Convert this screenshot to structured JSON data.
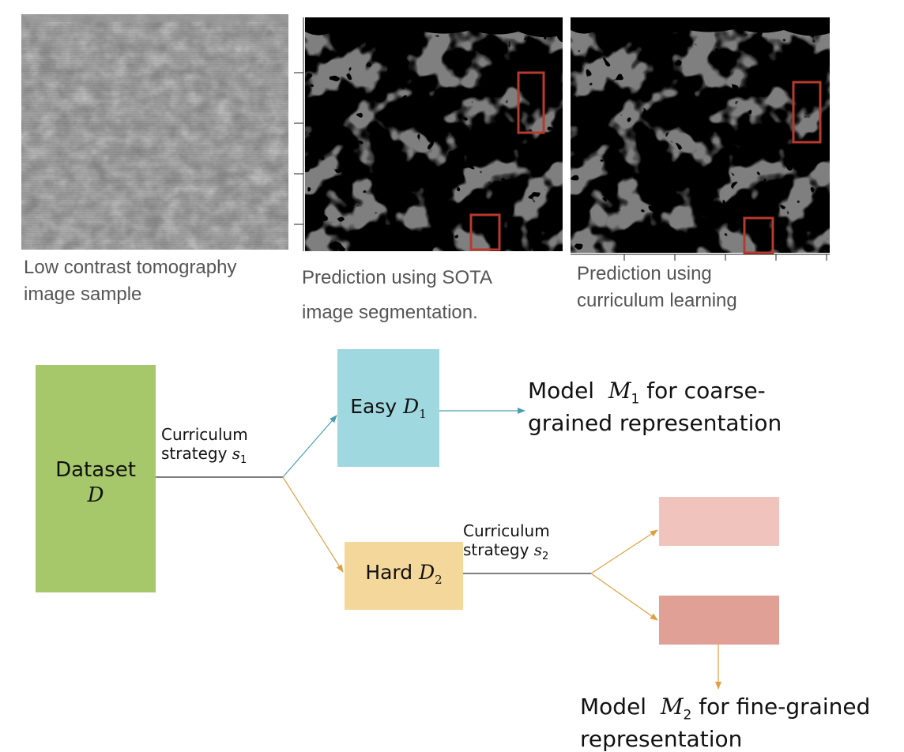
{
  "images": [
    {
      "caption_lines": [
        "Low contrast tomography",
        "image sample"
      ]
    },
    {
      "caption_lines": [
        "Prediction using  SOTA",
        "image segmentation."
      ]
    },
    {
      "caption_lines": [
        "Prediction using",
        "curriculum learning"
      ]
    }
  ],
  "diagram": {
    "dataset": {
      "title": "Dataset",
      "symbol": "D",
      "color": "#a6c86b"
    },
    "easy": {
      "label": "Easy",
      "symbol": "D",
      "sub": "1",
      "color": "#a0d8e0"
    },
    "hard": {
      "label": "Hard",
      "symbol": "D",
      "sub": "2",
      "color": "#f4d79a"
    },
    "fine_a": {
      "color": "#f0c4bc"
    },
    "fine_b": {
      "color": "#e0a096"
    },
    "strategy1": {
      "line1": "Curriculum",
      "line2": "strategy",
      "symbol": "s",
      "sub": "1"
    },
    "strategy2": {
      "line1": "Curriculum",
      "line2": "strategy",
      "symbol": "s",
      "sub": "2"
    },
    "model1": {
      "prefix": "Model ",
      "symbol": "M",
      "sub": "1",
      "suffix": " for coarse-",
      "line2": "grained representation"
    },
    "model2": {
      "prefix": "Model ",
      "symbol": "M",
      "sub": "2",
      "suffix": " for fine-grained",
      "line2": "representation"
    },
    "arrow_colors": {
      "teal": "#4a9fb0",
      "orange": "#e0a040",
      "dark": "#333333"
    }
  }
}
